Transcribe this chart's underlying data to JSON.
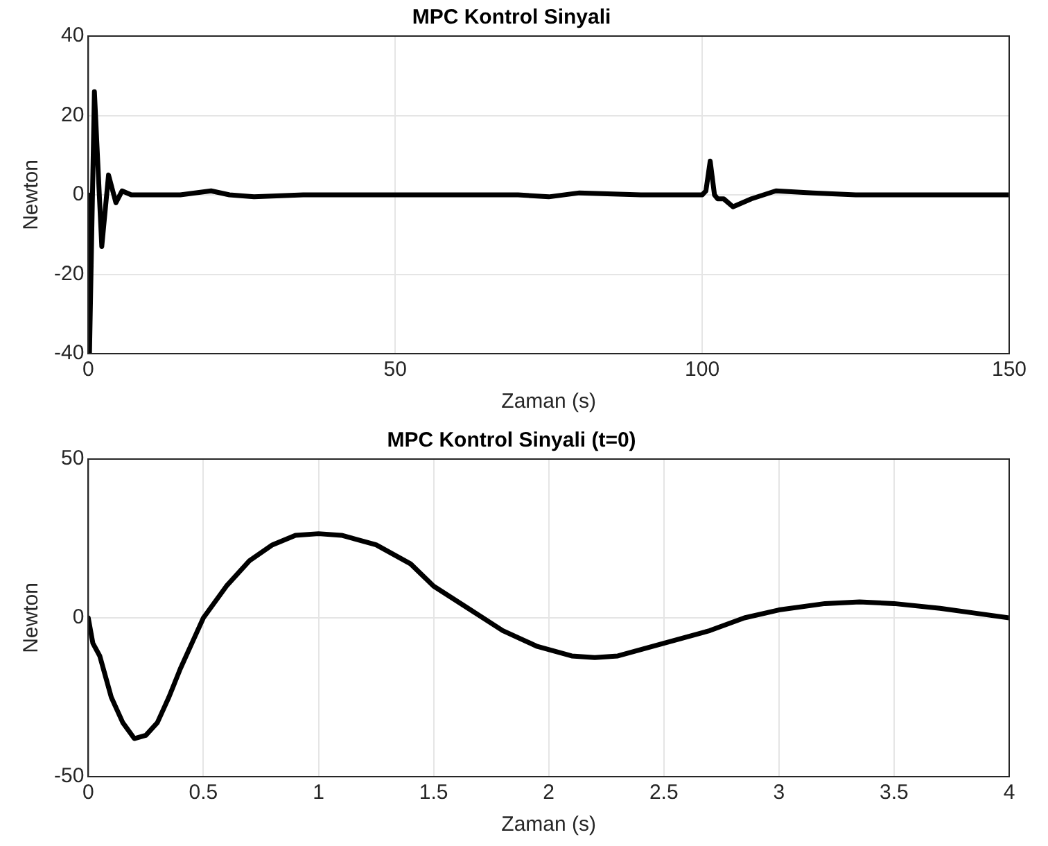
{
  "chart_data": [
    {
      "type": "line",
      "title": "MPC Kontrol Sinyali",
      "xlabel": "Zaman (s)",
      "ylabel": "Newton",
      "xlim": [
        0,
        150
      ],
      "xticks": [
        0,
        50,
        100,
        150
      ],
      "ylim": [
        -40,
        40
      ],
      "yticks": [
        -40,
        -20,
        0,
        20,
        40
      ],
      "grid": true,
      "legend": false,
      "marker": "none",
      "line_style": "solid",
      "series": [
        {
          "color": "#000000",
          "x": [
            0,
            0.2,
            1,
            2.2,
            3.3,
            4.5,
            5.5,
            7,
            10,
            15,
            20,
            23,
            27,
            35,
            50,
            65,
            70,
            75,
            80,
            90,
            100,
            100.6,
            101.3,
            102,
            102.5,
            103.5,
            105,
            108,
            112,
            118,
            125,
            150
          ],
          "values": [
            0,
            -40,
            26,
            -13,
            5,
            -2,
            1,
            0,
            0,
            0,
            1,
            0,
            -0.5,
            0,
            0,
            0,
            0,
            -0.5,
            0.5,
            0,
            0,
            1,
            8.5,
            0,
            -1,
            -1,
            -3,
            -1,
            1,
            0.5,
            0,
            0
          ]
        }
      ]
    },
    {
      "type": "line",
      "title": "MPC Kontrol Sinyali (t=0)",
      "xlabel": "Zaman (s)",
      "ylabel": "Newton",
      "xlim": [
        0,
        4
      ],
      "xticks": [
        0,
        0.5,
        1,
        1.5,
        2,
        2.5,
        3,
        3.5,
        4
      ],
      "ylim": [
        -50,
        50
      ],
      "yticks": [
        -50,
        0,
        50
      ],
      "grid": true,
      "legend": false,
      "marker": "none",
      "line_style": "solid",
      "series": [
        {
          "color": "#000000",
          "x": [
            0,
            0.02,
            0.05,
            0.1,
            0.15,
            0.2,
            0.25,
            0.3,
            0.35,
            0.4,
            0.45,
            0.5,
            0.6,
            0.7,
            0.8,
            0.9,
            1.0,
            1.1,
            1.25,
            1.4,
            1.5,
            1.65,
            1.8,
            1.95,
            2.1,
            2.2,
            2.3,
            2.5,
            2.7,
            2.85,
            3.0,
            3.2,
            3.35,
            3.5,
            3.7,
            3.85,
            4
          ],
          "values": [
            0,
            -8,
            -12,
            -25,
            -33,
            -38,
            -37,
            -33,
            -25,
            -16,
            -8,
            0,
            10,
            18,
            23,
            26,
            26.5,
            26,
            23,
            17,
            10,
            3,
            -4,
            -9,
            -12,
            -12.5,
            -12,
            -8,
            -4,
            0,
            2.5,
            4.5,
            5,
            4.5,
            3,
            1.5,
            0
          ]
        }
      ]
    }
  ]
}
